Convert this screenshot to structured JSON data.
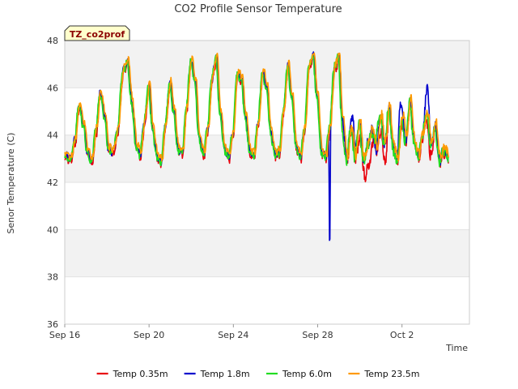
{
  "chart_data": {
    "type": "line",
    "title": "CO2 Profile Sensor Temperature",
    "xlabel": "Time",
    "ylabel": "Senor Temperature (C)",
    "badge": "TZ_co2prof",
    "x_unit": "days since Sep 16",
    "xlim": [
      0,
      19.2
    ],
    "ylim": [
      36,
      48
    ],
    "yticks": [
      36,
      38,
      40,
      42,
      44,
      46,
      48
    ],
    "xticks": [
      {
        "label": "Sep 16",
        "value": 0
      },
      {
        "label": "Sep 20",
        "value": 4
      },
      {
        "label": "Sep 24",
        "value": 8
      },
      {
        "label": "Sep 28",
        "value": 12
      },
      {
        "label": "Oct 2",
        "value": 16
      }
    ],
    "grid": true,
    "legend_position": "bottom",
    "base_profile": {
      "x": [
        0.0,
        0.3,
        0.5,
        0.7,
        0.9,
        1.1,
        1.3,
        1.5,
        1.7,
        1.9,
        2.1,
        2.3,
        2.5,
        2.8,
        3.0,
        3.2,
        3.4,
        3.6,
        3.8,
        4.0,
        4.2,
        4.4,
        4.6,
        4.8,
        5.0,
        5.2,
        5.4,
        5.6,
        5.8,
        6.0,
        6.2,
        6.4,
        6.6,
        6.8,
        7.0,
        7.2,
        7.4,
        7.6,
        7.8,
        8.0,
        8.2,
        8.4,
        8.6,
        8.8,
        9.0,
        9.2,
        9.4,
        9.6,
        9.8,
        10.0,
        10.2,
        10.4,
        10.6,
        10.8,
        11.0,
        11.2,
        11.4,
        11.6,
        11.8,
        12.0,
        12.2,
        12.4,
        12.6,
        12.8,
        13.0,
        13.2,
        13.4,
        13.6,
        13.8,
        14.0,
        14.2,
        14.4,
        14.6,
        14.8,
        15.0,
        15.2,
        15.4,
        15.6,
        15.8,
        16.0,
        16.2,
        16.4,
        16.6,
        16.8,
        17.0,
        17.2,
        17.4,
        17.6,
        17.8,
        18.0,
        18.2
      ],
      "y": [
        43.2,
        43.0,
        43.8,
        45.3,
        44.5,
        43.3,
        42.9,
        44.2,
        45.8,
        44.9,
        43.4,
        43.3,
        44.1,
        46.8,
        47.1,
        45.4,
        43.6,
        43.2,
        44.6,
        46.1,
        44.2,
        43.1,
        42.9,
        44.5,
        46.2,
        45.0,
        43.4,
        43.3,
        45.2,
        47.2,
        46.3,
        43.9,
        43.2,
        44.3,
        46.4,
        47.3,
        44.9,
        43.4,
        43.1,
        44.1,
        46.6,
        46.4,
        44.7,
        43.3,
        43.2,
        44.6,
        46.7,
        46.0,
        44.1,
        43.2,
        43.3,
        45.1,
        47.0,
        45.6,
        43.5,
        43.1,
        44.3,
        46.9,
        47.4,
        45.6,
        43.3,
        43.1,
        44.4,
        46.8,
        47.3,
        44.6,
        43.0,
        44.3,
        43.1,
        44.5,
        42.9,
        43.6,
        44.2,
        43.4,
        44.8,
        43.6,
        45.2,
        43.5,
        42.9,
        44.6,
        43.8,
        45.4,
        43.7,
        43.1,
        44.1,
        44.9,
        43.6,
        44.4,
        42.9,
        43.4,
        43.1
      ]
    },
    "series": [
      {
        "name": "Temp 0.35m",
        "color": "#e8000b",
        "offset": -0.1,
        "spread": 0.6,
        "seed": 11,
        "phase": 0.0,
        "events": [
          {
            "x": 14.0,
            "dip": -0.6
          },
          {
            "x": 14.3,
            "dip": -1.0
          },
          {
            "x": 14.5,
            "dip": -0.9
          },
          {
            "x": 15.0,
            "dip": -0.6
          },
          {
            "x": 15.2,
            "dip": -0.8
          },
          {
            "x": 17.3,
            "dip": -0.7
          }
        ]
      },
      {
        "name": "Temp 1.8m",
        "color": "#0000cc",
        "offset": 0.0,
        "spread": 0.5,
        "seed": 23,
        "phase": 0.02,
        "events": [
          {
            "x": 12.57,
            "dip": -6.0
          },
          {
            "x": 13.7,
            "dip": 1.0
          },
          {
            "x": 15.9,
            "dip": 1.2
          },
          {
            "x": 17.2,
            "dip": 1.3
          }
        ]
      },
      {
        "name": "Temp 6.0m",
        "color": "#22dd22",
        "offset": -0.05,
        "spread": 0.5,
        "seed": 37,
        "phase": 0.04,
        "events": [
          {
            "x": 13.2,
            "dip": -0.4
          },
          {
            "x": 14.8,
            "dip": 0.6
          }
        ]
      },
      {
        "name": "Temp 23.5m",
        "color": "#ff9900",
        "offset": 0.1,
        "spread": 0.45,
        "seed": 53,
        "phase": -0.02,
        "events": [
          {
            "x": 16.1,
            "dip": 0.3
          }
        ]
      }
    ]
  }
}
